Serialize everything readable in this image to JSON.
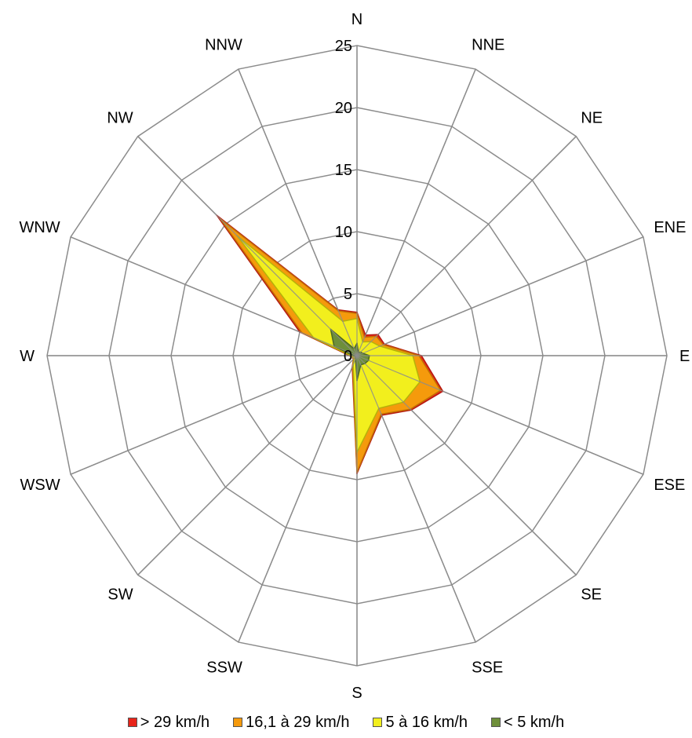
{
  "chart_data": {
    "type": "radar",
    "directions": [
      "N",
      "NNE",
      "NE",
      "ENE",
      "E",
      "ESE",
      "SE",
      "SSE",
      "S",
      "SSW",
      "SW",
      "WSW",
      "W",
      "WNW",
      "NW",
      "NNW"
    ],
    "ticks": [
      0,
      5,
      10,
      15,
      20,
      25
    ],
    "rlim": [
      0,
      25
    ],
    "grid": true,
    "legend_position": "bottom",
    "series": [
      {
        "name": "> 29 km/h",
        "color": "#e8241a",
        "values": [
          3.5,
          1.8,
          2.4,
          2.4,
          5.2,
          7.5,
          6.2,
          5.2,
          9.5,
          1.0,
          0.4,
          0.4,
          0.6,
          5.0,
          16.0,
          4.0
        ]
      },
      {
        "name": "16,1 à 29 km/h",
        "color": "#f59a0c",
        "values": [
          3.4,
          1.6,
          2.2,
          2.3,
          5.0,
          7.3,
          6.1,
          5.1,
          9.4,
          0.9,
          0.4,
          0.4,
          0.5,
          4.8,
          15.6,
          3.9
        ]
      },
      {
        "name": "5 à 16 km/h",
        "color": "#f2ef1d",
        "values": [
          3.0,
          1.2,
          1.6,
          2.0,
          4.5,
          5.5,
          5.3,
          4.6,
          7.8,
          0.8,
          0.3,
          0.3,
          0.5,
          3.8,
          13.7,
          3.0
        ]
      },
      {
        "name": "< 5 km/h",
        "color": "#6e8f3a",
        "values": [
          1.0,
          0.3,
          0.4,
          0.5,
          1.0,
          1.0,
          0.9,
          0.8,
          2.0,
          0.3,
          0.2,
          0.1,
          0.3,
          2.0,
          3.0,
          0.6
        ]
      }
    ]
  }
}
